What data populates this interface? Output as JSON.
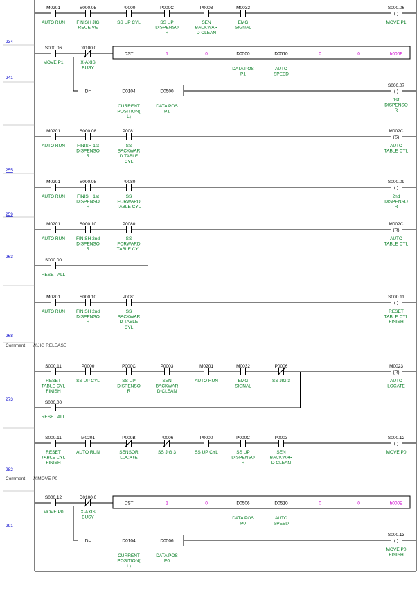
{
  "ladder": {
    "colors": {
      "wire": "#000000",
      "comment": "#007a1f",
      "step": "#0000cc",
      "constant": "#cc00cc"
    },
    "rungs": [
      {
        "step": "234",
        "contacts": [
          {
            "addr": "M0201",
            "type": "no",
            "comment": [
              "AUTO RUN"
            ]
          },
          {
            "addr": "S000.05",
            "type": "no",
            "comment": [
              "FINISH JIG",
              "RECEIVE"
            ]
          },
          {
            "addr": "P0000",
            "type": "no",
            "comment": [
              "SS UP CYL"
            ]
          },
          {
            "addr": "P000C",
            "type": "no",
            "comment": [
              "SS UP",
              "DISPENSO",
              "R"
            ]
          },
          {
            "addr": "P0003",
            "type": "no",
            "comment": [
              "SEN",
              "BACKWAR",
              "D CLEAN"
            ]
          },
          {
            "addr": "M0032",
            "type": "no",
            "comment": [
              "EMG",
              "SIGNAL"
            ]
          }
        ],
        "coil": {
          "addr": "S000.06",
          "symbol": "( )",
          "comment": [
            "MOVE P1"
          ]
        }
      },
      {
        "step": "241",
        "contacts": [
          {
            "addr": "S000.06",
            "type": "no",
            "comment": [
              "MOVE P1"
            ]
          },
          {
            "addr": "D0100.0",
            "type": "nc",
            "comment": [
              "X-AXIS",
              "BUSY"
            ]
          }
        ],
        "dst": {
          "label": "DST",
          "operands": [
            {
              "text": "1",
              "kind": "const",
              "comment": []
            },
            {
              "text": "0",
              "kind": "const",
              "comment": []
            },
            {
              "text": "D0500",
              "kind": "reg",
              "comment": [
                "DATA POS",
                "P1"
              ]
            },
            {
              "text": "D0510",
              "kind": "reg",
              "comment": [
                "AUTO",
                "SPEED"
              ]
            },
            {
              "text": "0",
              "kind": "const",
              "comment": []
            },
            {
              "text": "0",
              "kind": "const",
              "comment": []
            },
            {
              "text": "h000F",
              "kind": "const",
              "comment": []
            }
          ]
        },
        "compare": {
          "op": "D=",
          "a": "D0104",
          "a_comment": [
            "CURRENT",
            "POSITION(",
            "L)"
          ],
          "b": "D0500",
          "b_comment": [
            "DATA POS",
            "P1"
          ]
        },
        "coil": {
          "addr": "S000.07",
          "symbol": "( )",
          "comment": [
            "1st",
            "DISPENSO",
            "R"
          ]
        }
      },
      {
        "step": "255",
        "contacts": [
          {
            "addr": "M0201",
            "type": "no",
            "comment": [
              "AUTO RUN"
            ]
          },
          {
            "addr": "S000.08",
            "type": "no",
            "comment": [
              "FINISH 1st",
              "DISPENSO",
              "R"
            ]
          },
          {
            "addr": "P0081",
            "type": "no",
            "comment": [
              "SS",
              "BACKWAR",
              "D TABLE",
              "CYL"
            ]
          }
        ],
        "coil": {
          "addr": "M002C",
          "symbol": "(S)",
          "comment": [
            "AUTO",
            "TABLE CYL"
          ]
        }
      },
      {
        "step": "259",
        "contacts": [
          {
            "addr": "M0201",
            "type": "no",
            "comment": [
              "AUTO RUN"
            ]
          },
          {
            "addr": "S000.08",
            "type": "no",
            "comment": [
              "FINISH 1st",
              "DISPENSO",
              "R"
            ]
          },
          {
            "addr": "P0080",
            "type": "no",
            "comment": [
              "SS",
              "FORWARD",
              "TABLE CYL"
            ]
          }
        ],
        "coil": {
          "addr": "S000.09",
          "symbol": "( )",
          "comment": [
            "2nd",
            "DISPENSO",
            "R"
          ]
        }
      },
      {
        "step": "263",
        "contacts": [
          {
            "addr": "M0201",
            "type": "no",
            "comment": [
              "AUTO RUN"
            ]
          },
          {
            "addr": "S000.10",
            "type": "no",
            "comment": [
              "FINISH 2nd",
              "DISPENSO",
              "R"
            ]
          },
          {
            "addr": "P0080",
            "type": "no",
            "comment": [
              "SS",
              "FORWARD",
              "TABLE CYL"
            ]
          }
        ],
        "branch": {
          "addr": "S000.00",
          "type": "no",
          "comment": [
            "RESET ALL"
          ]
        },
        "coil": {
          "addr": "M002C",
          "symbol": "(R)",
          "comment": [
            "AUTO",
            "TABLE CYL"
          ]
        }
      },
      {
        "step": "268",
        "contacts": [
          {
            "addr": "M0201",
            "type": "no",
            "comment": [
              "AUTO RUN"
            ]
          },
          {
            "addr": "S000.10",
            "type": "no",
            "comment": [
              "FINISH 2nd",
              "DISPENSO",
              "R"
            ]
          },
          {
            "addr": "P0081",
            "type": "no",
            "comment": [
              "SS",
              "BACKWAR",
              "D TABLE",
              "CYL"
            ]
          }
        ],
        "coil": {
          "addr": "S000.11",
          "symbol": "( )",
          "comment": [
            "RESET",
            "TABLE CYL",
            "FINISH"
          ]
        }
      },
      {
        "step": "273",
        "contacts": [
          {
            "addr": "S000.11",
            "type": "no",
            "comment": [
              "RESET",
              "TABLE CYL",
              "FINISH"
            ]
          },
          {
            "addr": "P0000",
            "type": "no",
            "comment": [
              "SS UP CYL"
            ]
          },
          {
            "addr": "P000C",
            "type": "no",
            "comment": [
              "SS UP",
              "DISPENSO",
              "R"
            ]
          },
          {
            "addr": "P0003",
            "type": "no",
            "comment": [
              "SEN",
              "BACKWAR",
              "D CLEAN"
            ]
          },
          {
            "addr": "M0201",
            "type": "no",
            "comment": [
              "AUTO RUN"
            ]
          },
          {
            "addr": "M0032",
            "type": "no",
            "comment": [
              "EMG",
              "SIGNAL"
            ]
          },
          {
            "addr": "P0006",
            "type": "nc",
            "comment": [
              "SS JIG 3"
            ]
          }
        ],
        "branch": {
          "addr": "S000.00",
          "type": "no",
          "comment": [
            "RESET ALL"
          ]
        },
        "coil": {
          "addr": "M0023",
          "symbol": "(R)",
          "comment": [
            "AUTO",
            "LOCATE"
          ]
        }
      },
      {
        "step": "282",
        "contacts": [
          {
            "addr": "S000.11",
            "type": "no",
            "comment": [
              "RESET",
              "TABLE CYL",
              "FINISH"
            ]
          },
          {
            "addr": "M0201",
            "type": "no",
            "comment": [
              "AUTO RUN"
            ]
          },
          {
            "addr": "P000B",
            "type": "nc",
            "comment": [
              "SENSOR",
              "LOCATE"
            ]
          },
          {
            "addr": "P0006",
            "type": "nc",
            "comment": [
              "SS JIG 3"
            ]
          },
          {
            "addr": "P0000",
            "type": "no",
            "comment": [
              "SS UP CYL"
            ]
          },
          {
            "addr": "P000C",
            "type": "no",
            "comment": [
              "SS UP",
              "DISPENSO",
              "R"
            ]
          },
          {
            "addr": "P0003",
            "type": "no",
            "comment": [
              "SEN",
              "BACKWAR",
              "D CLEAN"
            ]
          }
        ],
        "coil": {
          "addr": "S000.12",
          "symbol": "( )",
          "comment": [
            "MOVE P0"
          ]
        }
      },
      {
        "step": "291",
        "contacts": [
          {
            "addr": "S000.12",
            "type": "no",
            "comment": [
              "MOVE P0"
            ]
          },
          {
            "addr": "D0100.0",
            "type": "nc",
            "comment": [
              "X-AXIS",
              "BUSY"
            ]
          }
        ],
        "dst": {
          "label": "DST",
          "operands": [
            {
              "text": "1",
              "kind": "const",
              "comment": []
            },
            {
              "text": "0",
              "kind": "const",
              "comment": []
            },
            {
              "text": "D0506",
              "kind": "reg",
              "comment": [
                "DATA POS",
                "P0"
              ]
            },
            {
              "text": "D0510",
              "kind": "reg",
              "comment": [
                "AUTO",
                "SPEED"
              ]
            },
            {
              "text": "0",
              "kind": "const",
              "comment": []
            },
            {
              "text": "0",
              "kind": "const",
              "comment": []
            },
            {
              "text": "h000E",
              "kind": "const",
              "comment": []
            }
          ]
        },
        "compare": {
          "op": "D=",
          "a": "D0104",
          "a_comment": [
            "CURRENT",
            "POSITION(",
            "L)"
          ],
          "b": "D0506",
          "b_comment": [
            "DATA POS",
            "P0"
          ]
        },
        "coil": {
          "addr": "S000.13",
          "symbol": "( )",
          "comment": [
            "MOVE P0",
            "FINISH"
          ]
        }
      }
    ],
    "comments": [
      {
        "prefix": "Comment",
        "text": "\\\\\\\\JIG RELEASE"
      },
      {
        "prefix": "Comment",
        "text": "\\\\\\\\MOVE P0"
      }
    ]
  }
}
